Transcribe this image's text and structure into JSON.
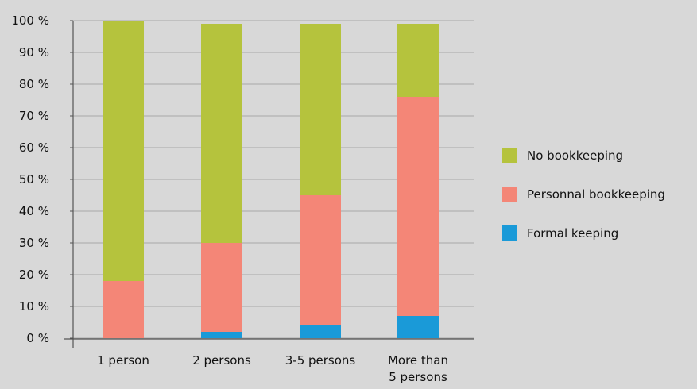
{
  "chart_data": {
    "type": "bar",
    "stacked": true,
    "categories": [
      "1 person",
      "2 persons",
      "3-5 persons",
      "More than 5 persons"
    ],
    "category_lines": [
      [
        "1 person"
      ],
      [
        "2 persons"
      ],
      [
        "3-5 persons"
      ],
      [
        "More than",
        "5 persons"
      ]
    ],
    "series": [
      {
        "name": "Formal keeping",
        "values": [
          0,
          2,
          4,
          7
        ],
        "color": "#1a9ad8"
      },
      {
        "name": "Personnal bookkeeping",
        "values": [
          18,
          28,
          41,
          69
        ],
        "color": "#f48677"
      },
      {
        "name": "No bookkeeping",
        "values": [
          82,
          69,
          54,
          23
        ],
        "color": "#b5c33d"
      }
    ],
    "legend_order": [
      "No bookkeeping",
      "Personnal bookkeeping",
      "Formal keeping"
    ],
    "ylim": [
      0,
      100
    ],
    "yticks": [
      0,
      10,
      20,
      30,
      40,
      50,
      60,
      70,
      80,
      90,
      100
    ],
    "ytick_labels": [
      "0 %",
      "10 %",
      "20 %",
      "30 %",
      "40 %",
      "50 %",
      "60 %",
      "70 %",
      "80 %",
      "90 %",
      "100 %"
    ],
    "grid": true,
    "legend_position": "right",
    "title": "",
    "xlabel": "",
    "ylabel": ""
  }
}
